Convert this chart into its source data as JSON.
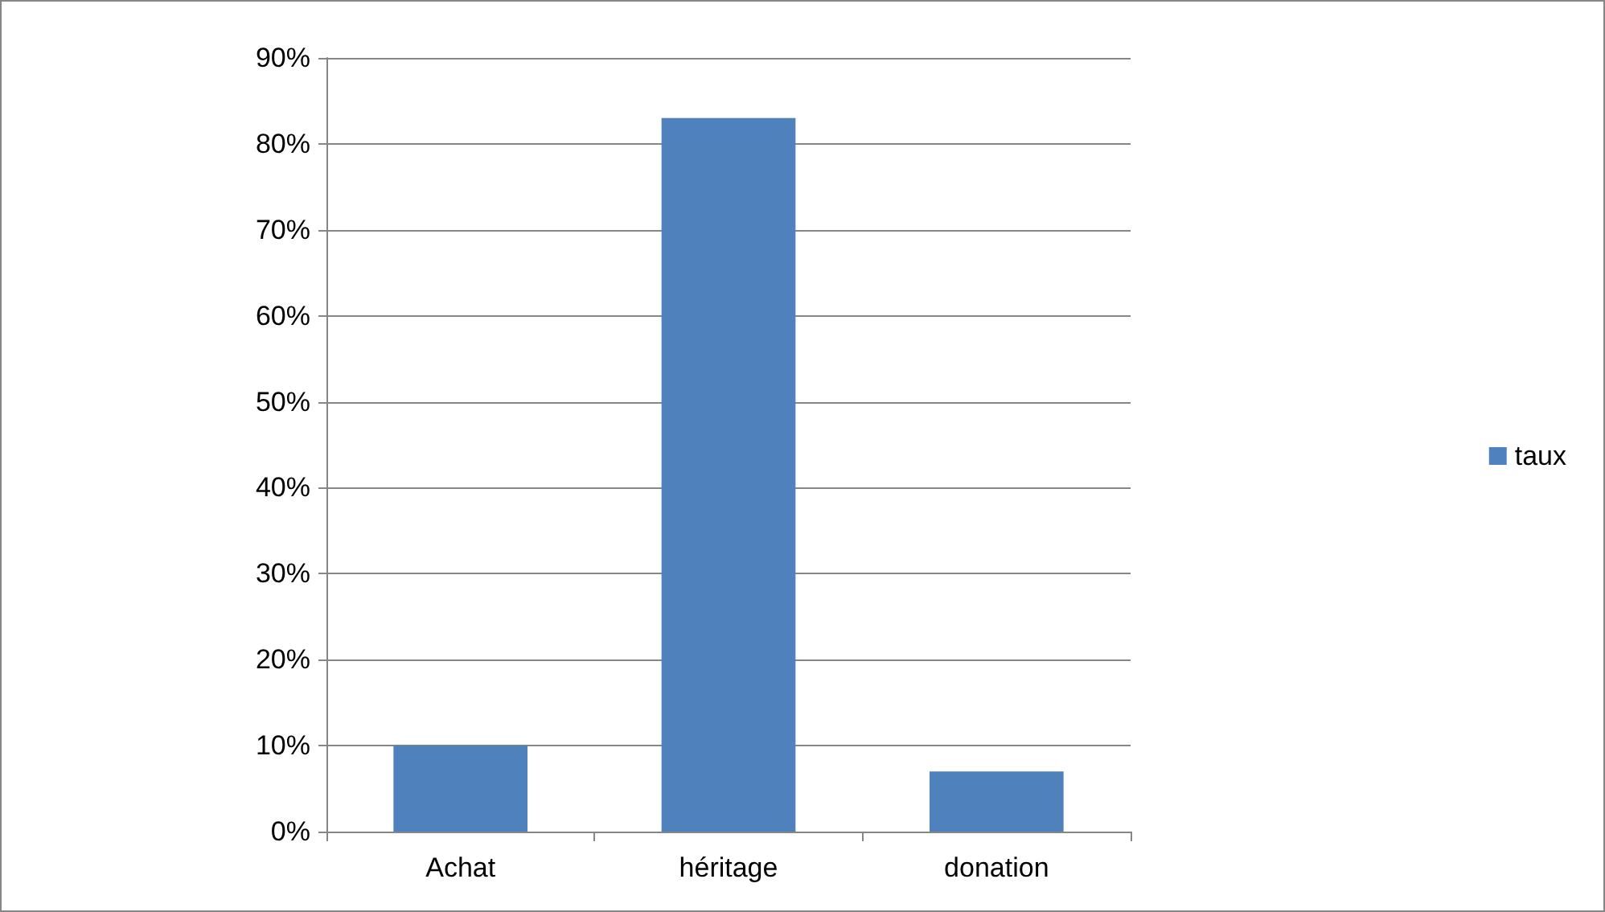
{
  "chart_data": {
    "type": "bar",
    "categories": [
      "Achat",
      "héritage",
      "donation"
    ],
    "series": [
      {
        "name": "taux",
        "color": "#4f81bd",
        "values": [
          10,
          83,
          7
        ]
      }
    ],
    "ylim": [
      0,
      90
    ],
    "yticks": [
      {
        "value": 0,
        "label": "0%"
      },
      {
        "value": 10,
        "label": "10%"
      },
      {
        "value": 20,
        "label": "20%"
      },
      {
        "value": 30,
        "label": "30%"
      },
      {
        "value": 40,
        "label": "40%"
      },
      {
        "value": 50,
        "label": "50%"
      },
      {
        "value": 60,
        "label": "60%"
      },
      {
        "value": 70,
        "label": "70%"
      },
      {
        "value": 80,
        "label": "80%"
      },
      {
        "value": 90,
        "label": "90%"
      }
    ],
    "grid": "y",
    "legend": "right"
  }
}
